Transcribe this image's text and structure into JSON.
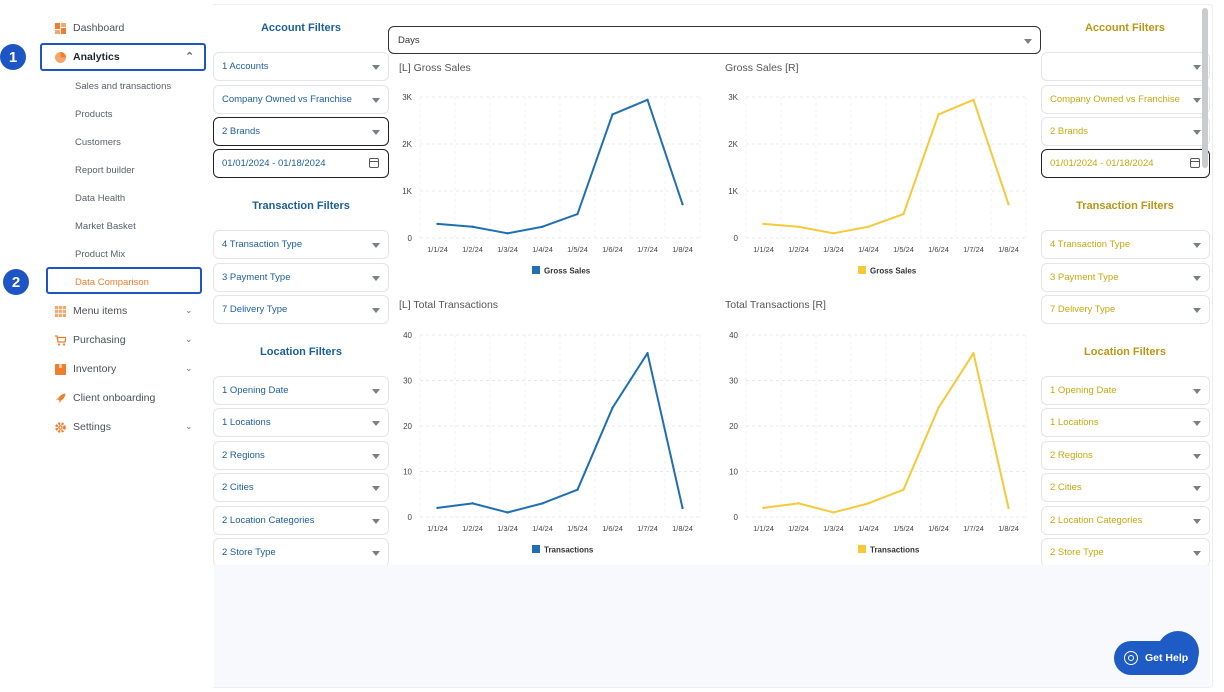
{
  "sidebar": {
    "dashboard": "Dashboard",
    "analytics": "Analytics",
    "analytics_sub": [
      "Sales and transactions",
      "Products",
      "Customers",
      "Report builder",
      "Data Health",
      "Market Basket",
      "Product Mix",
      "Data Comparison"
    ],
    "menu_items": "Menu items",
    "purchasing": "Purchasing",
    "inventory": "Inventory",
    "client_onboarding": "Client onboarding",
    "settings": "Settings"
  },
  "markers": [
    "1",
    "2"
  ],
  "left_filters": {
    "account_title": "Account Filters",
    "accounts": "1 Accounts",
    "ownership": "Company Owned vs Franchise",
    "brands": "2 Brands",
    "date_range": "01/01/2024 - 01/18/2024",
    "transaction_title": "Transaction Filters",
    "transaction_type": "4 Transaction Type",
    "payment_type": "3 Payment Type",
    "delivery_type": "7 Delivery Type",
    "location_title": "Location Filters",
    "opening_date": "1 Opening Date",
    "locations": "1 Locations",
    "regions": "2 Regions",
    "cities": "2 Cities",
    "location_categories": "2 Location Categories",
    "store_type": "2 Store Type"
  },
  "right_filters": {
    "account_title": "Account Filters",
    "accounts": "",
    "ownership": "Company Owned vs Franchise",
    "brands": "2 Brands",
    "date_range": "01/01/2024 - 01/18/2024",
    "transaction_title": "Transaction Filters",
    "transaction_type": "4 Transaction Type",
    "payment_type": "3 Payment Type",
    "delivery_type": "7 Delivery Type",
    "location_title": "Location Filters",
    "opening_date": "1 Opening Date",
    "locations": "1 Locations",
    "regions": "2 Regions",
    "cities": "2 Cities",
    "location_categories": "2 Location Categories",
    "store_type": "2 Store Type"
  },
  "period_select": "Days",
  "help_label": "Get Help",
  "colors": {
    "left": "#1f6fb2",
    "right": "#f5c93a",
    "accent": "#ef7d2e",
    "highlight": "#1d55c4"
  },
  "chart_data": [
    {
      "type": "line",
      "title": "[L] Gross Sales",
      "x": [
        "1/1/24",
        "1/2/24",
        "1/3/24",
        "1/4/24",
        "1/5/24",
        "1/6/24",
        "1/7/24",
        "1/8/24"
      ],
      "yticks": [
        "0",
        "1K",
        "2K",
        "3K"
      ],
      "ylim": [
        0,
        3000
      ],
      "series": [
        {
          "name": "Gross Sales",
          "values": [
            300,
            240,
            100,
            240,
            510,
            2630,
            2940,
            720
          ]
        }
      ],
      "legend": "bottom-center"
    },
    {
      "type": "line",
      "title": "Gross Sales [R]",
      "x": [
        "1/1/24",
        "1/2/24",
        "1/3/24",
        "1/4/24",
        "1/5/24",
        "1/6/24",
        "1/7/24",
        "1/8/24"
      ],
      "yticks": [
        "0",
        "1K",
        "2K",
        "3K"
      ],
      "ylim": [
        0,
        3000
      ],
      "series": [
        {
          "name": "Gross Sales",
          "values": [
            300,
            240,
            100,
            240,
            510,
            2630,
            2940,
            720
          ]
        }
      ],
      "legend": "bottom-center"
    },
    {
      "type": "line",
      "title": "[L] Total Transactions",
      "x": [
        "1/1/24",
        "1/2/24",
        "1/3/24",
        "1/4/24",
        "1/5/24",
        "1/6/24",
        "1/7/24",
        "1/8/24"
      ],
      "yticks": [
        "0",
        "10",
        "20",
        "30",
        "40"
      ],
      "ylim": [
        0,
        40
      ],
      "series": [
        {
          "name": "Transactions",
          "values": [
            2,
            3,
            1,
            3,
            6,
            24,
            36,
            2
          ]
        }
      ],
      "legend": "bottom-center"
    },
    {
      "type": "line",
      "title": "Total Transactions [R]",
      "x": [
        "1/1/24",
        "1/2/24",
        "1/3/24",
        "1/4/24",
        "1/5/24",
        "1/6/24",
        "1/7/24",
        "1/8/24"
      ],
      "yticks": [
        "0",
        "10",
        "20",
        "30",
        "40"
      ],
      "ylim": [
        0,
        40
      ],
      "series": [
        {
          "name": "Transactions",
          "values": [
            2,
            3,
            1,
            3,
            6,
            24,
            36,
            2
          ]
        }
      ],
      "legend": "bottom-center"
    }
  ]
}
